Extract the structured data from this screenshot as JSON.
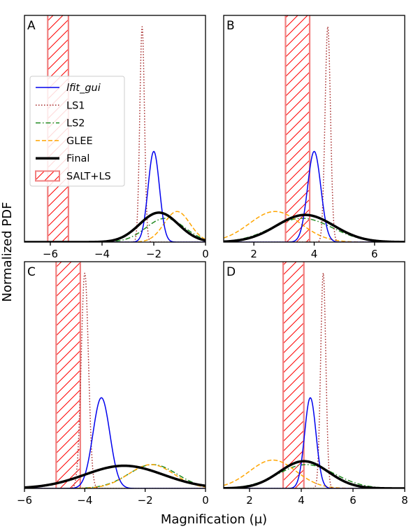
{
  "chart_data": {
    "type": "line",
    "xlabel": "Magnification (μ)",
    "ylabel": "Normalized PDF",
    "legend": {
      "placement": "upper-left of panel A",
      "entries": [
        "lfit_gui",
        "LS1",
        "LS2",
        "GLEE",
        "Final",
        "SALT+LS"
      ]
    },
    "series_styles": {
      "lfit_gui": {
        "color": "#0000ee",
        "dash": "solid",
        "width": 1.5
      },
      "LS1": {
        "color": "#a52a2a",
        "dash": "dotted",
        "width": 1.5
      },
      "LS2": {
        "color": "#228b22",
        "dash": "dashdot",
        "width": 1.5
      },
      "GLEE": {
        "color": "#ffa500",
        "dash": "dashed",
        "width": 1.5
      },
      "Final": {
        "color": "#000000",
        "dash": "solid",
        "width": 3.5
      },
      "SALT+LS": {
        "color": "#f08080",
        "hatch": "#ff0000"
      }
    },
    "panels": [
      {
        "label": "A",
        "xlim": [
          -7,
          0
        ],
        "ylim": [
          0,
          1.0
        ],
        "xticks": [
          -6,
          -4,
          -2,
          0
        ],
        "band": [
          -6.1,
          -5.3
        ],
        "curves": [
          {
            "name": "lfit_gui",
            "kind": "gauss",
            "mu": -2.0,
            "sigma": 0.22,
            "peak": 0.4
          },
          {
            "name": "LS1",
            "kind": "gauss",
            "mu": -2.45,
            "sigma": 0.09,
            "peak": 0.95
          },
          {
            "name": "LS2",
            "kind": "gauss",
            "mu": -1.55,
            "sigma": 0.75,
            "peak": 0.105
          },
          {
            "name": "GLEE",
            "kind": "gauss",
            "mu": -1.1,
            "sigma": 0.5,
            "peak": 0.135
          },
          {
            "name": "Final",
            "kind": "gauss",
            "mu": -1.8,
            "sigma": 0.75,
            "peak": 0.13
          }
        ]
      },
      {
        "label": "B",
        "xlim": [
          1,
          7
        ],
        "ylim": [
          0,
          1.0
        ],
        "xticks": [
          2,
          4,
          6
        ],
        "band": [
          3.05,
          3.85
        ],
        "curves": [
          {
            "name": "lfit_gui",
            "kind": "gauss",
            "mu": 4.0,
            "sigma": 0.22,
            "peak": 0.4
          },
          {
            "name": "LS1",
            "kind": "gauss",
            "mu": 4.45,
            "sigma": 0.09,
            "peak": 0.95
          },
          {
            "name": "LS2",
            "kind": "gauss",
            "mu": 3.6,
            "sigma": 1.0,
            "peak": 0.105
          },
          {
            "name": "GLEE",
            "kind": "gauss",
            "mu": 2.7,
            "sigma": 0.85,
            "peak": 0.135
          },
          {
            "name": "Final",
            "kind": "gauss",
            "mu": 3.7,
            "sigma": 0.95,
            "peak": 0.12
          }
        ]
      },
      {
        "label": "C",
        "xlim": [
          -6,
          0
        ],
        "ylim": [
          0,
          1.0
        ],
        "xticks": [
          -6,
          -4,
          -2,
          0
        ],
        "band": [
          -4.95,
          -4.15
        ],
        "curves": [
          {
            "name": "lfit_gui",
            "kind": "gauss",
            "mu": -3.45,
            "sigma": 0.28,
            "peak": 0.4
          },
          {
            "name": "LS1",
            "kind": "gauss",
            "mu": -4.0,
            "sigma": 0.12,
            "peak": 0.95
          },
          {
            "name": "LS2",
            "kind": "gauss",
            "mu": -1.75,
            "sigma": 0.8,
            "peak": 0.105
          },
          {
            "name": "GLEE",
            "kind": "gauss",
            "mu": -1.8,
            "sigma": 0.75,
            "peak": 0.105
          },
          {
            "name": "Final",
            "kind": "gauss",
            "mu": -2.7,
            "sigma": 1.3,
            "peak": 0.1
          }
        ]
      },
      {
        "label": "D",
        "xlim": [
          1,
          8
        ],
        "ylim": [
          0,
          1.0
        ],
        "xticks": [
          2,
          4,
          6,
          8
        ],
        "band": [
          3.3,
          4.1
        ],
        "curves": [
          {
            "name": "lfit_gui",
            "kind": "gauss",
            "mu": 4.35,
            "sigma": 0.22,
            "peak": 0.4
          },
          {
            "name": "LS1",
            "kind": "gauss",
            "mu": 4.85,
            "sigma": 0.1,
            "peak": 0.95
          },
          {
            "name": "LS2",
            "kind": "gauss",
            "mu": 4.2,
            "sigma": 1.1,
            "peak": 0.105
          },
          {
            "name": "GLEE",
            "kind": "gauss",
            "mu": 2.9,
            "sigma": 0.9,
            "peak": 0.125
          },
          {
            "name": "Final",
            "kind": "gauss",
            "mu": 4.1,
            "sigma": 0.95,
            "peak": 0.12
          }
        ]
      }
    ]
  }
}
